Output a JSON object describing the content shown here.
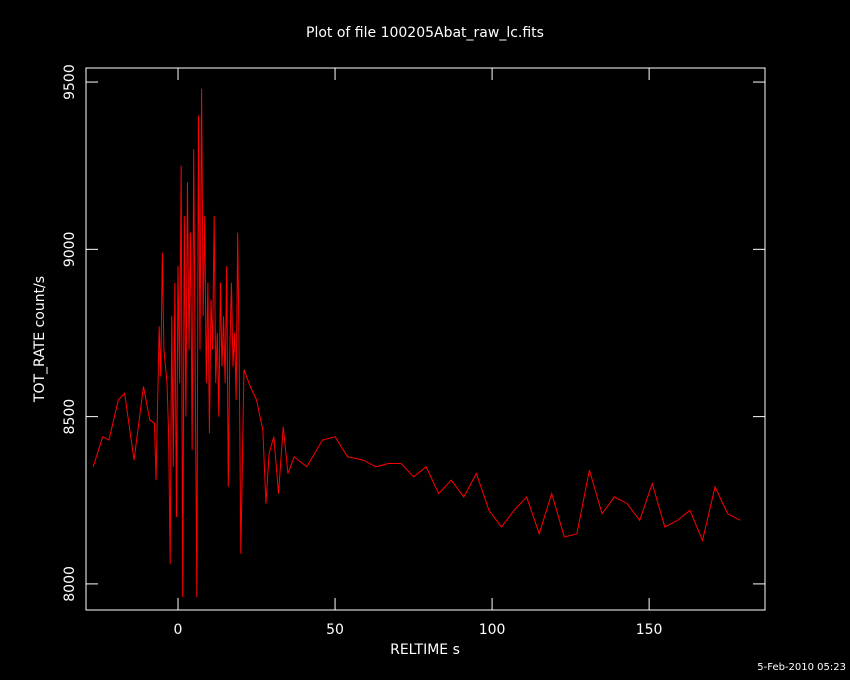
{
  "chart_data": {
    "type": "line",
    "title": "Plot of file 100205Abat_raw_lc.fits",
    "x_label": "RELTIME  s",
    "y_label": "TOT_RATE  count/s",
    "footer": "5-Feb-2010 05:23",
    "x": [
      -27,
      -24,
      -22,
      -19,
      -17,
      -14,
      -11,
      -9,
      -7.5,
      -7,
      -6,
      -5.5,
      -5,
      -4.5,
      -4,
      -3.5,
      -3,
      -2.5,
      -2,
      -1.5,
      -1,
      -0.5,
      0,
      0.5,
      1,
      1.5,
      2,
      2.5,
      3,
      3.5,
      4,
      4.5,
      5,
      5.5,
      6,
      6.5,
      7,
      7.5,
      8,
      8.5,
      9,
      9.5,
      10,
      10.5,
      11,
      11.5,
      12,
      12.5,
      13,
      13.5,
      14,
      14.5,
      15,
      15.5,
      16,
      16.5,
      17,
      17.5,
      18,
      18.5,
      19,
      19.5,
      20,
      21,
      23,
      25,
      27,
      28,
      29,
      30.5,
      32,
      33.5,
      35,
      37,
      41,
      46,
      50,
      54,
      59,
      63,
      67,
      71,
      75,
      79,
      83,
      87,
      91,
      95,
      99,
      103,
      107,
      111,
      115,
      119,
      123,
      127,
      131,
      135,
      139,
      143,
      147,
      151,
      155,
      159,
      163,
      167,
      171,
      175,
      179
    ],
    "series": [
      {
        "name": "TOT_RATE",
        "color": "#ff0000",
        "values": [
          8350,
          8440,
          8430,
          8550,
          8570,
          8370,
          8590,
          8490,
          8480,
          8310,
          8770,
          8620,
          8990,
          8700,
          8650,
          8600,
          8450,
          8060,
          8800,
          8350,
          8900,
          8200,
          8950,
          8600,
          9250,
          7960,
          9100,
          8500,
          9200,
          8700,
          9050,
          8400,
          9300,
          8600,
          7960,
          9400,
          8700,
          9480,
          8800,
          9100,
          8600,
          8900,
          8450,
          8850,
          8700,
          9100,
          8600,
          8750,
          8500,
          8900,
          8650,
          8800,
          8600,
          8950,
          8290,
          8700,
          8900,
          8650,
          8750,
          8550,
          9050,
          8650,
          8090,
          8640,
          8590,
          8550,
          8460,
          8240,
          8390,
          8440,
          8270,
          8470,
          8330,
          8380,
          8350,
          8430,
          8440,
          8380,
          8370,
          8350,
          8360,
          8360,
          8320,
          8350,
          8270,
          8310,
          8260,
          8330,
          8220,
          8170,
          8220,
          8260,
          8150,
          8270,
          8140,
          8150,
          8340,
          8210,
          8260,
          8240,
          8190,
          8300,
          8170,
          8190,
          8220,
          8130,
          8290,
          8210,
          8190
        ]
      }
    ],
    "xlim": [
      -29.3,
      186.9
    ],
    "ylim": [
      7922,
      9542
    ],
    "xticks": [
      0,
      50,
      100,
      150
    ],
    "yticks": [
      8000,
      8500,
      9000,
      9500
    ]
  }
}
